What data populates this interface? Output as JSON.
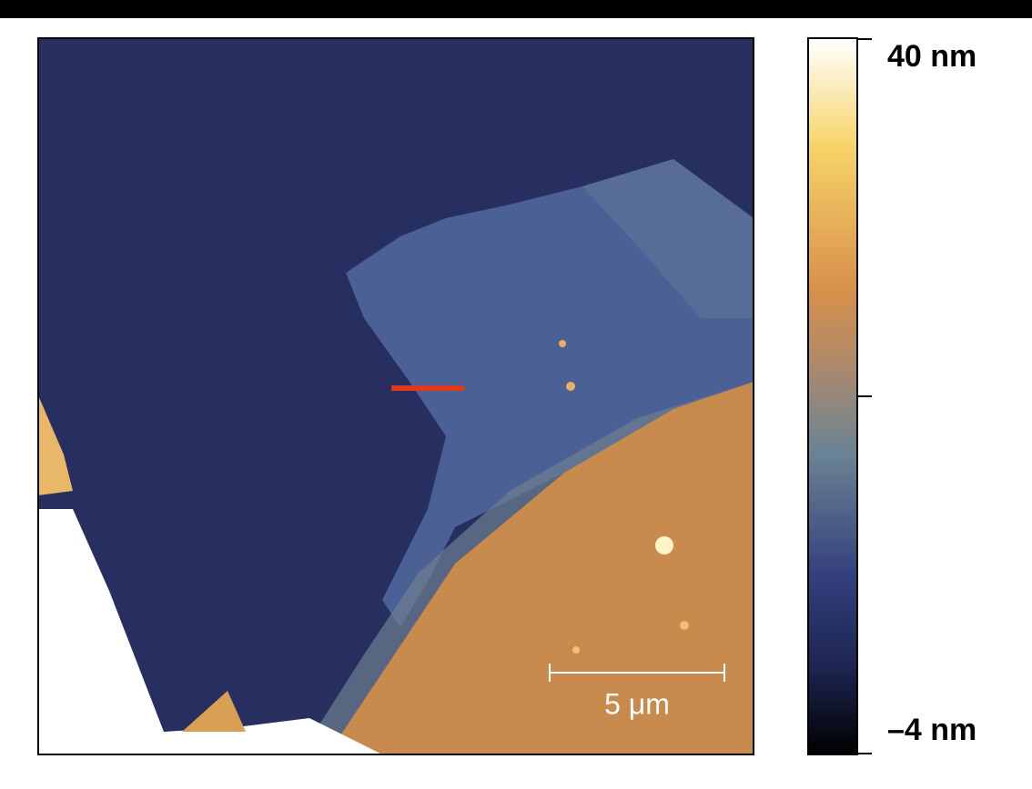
{
  "colorbar": {
    "max_label": "40 nm",
    "min_label": "–4 nm"
  },
  "scale_bar": {
    "label": "5 μm"
  }
}
